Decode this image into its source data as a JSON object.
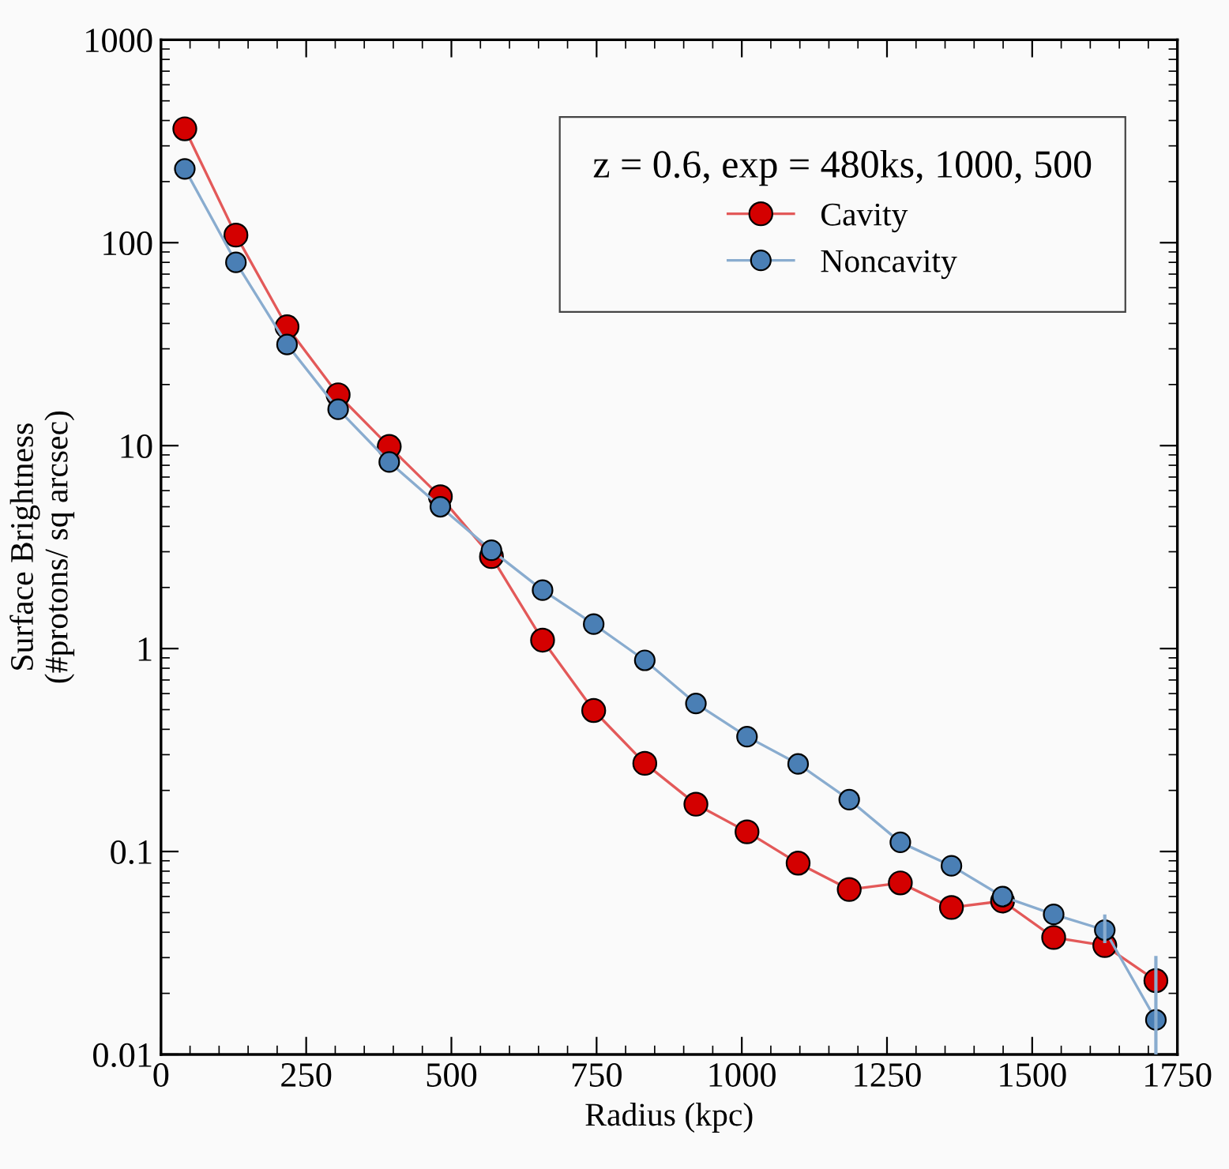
{
  "chart_data": {
    "type": "line",
    "xlabel": "Radius (kpc)",
    "ylabel": "Surface Brightness\n(#protons/ sq arcsec)",
    "legend_title": "z = 0.6, exp = 480ks, 1000, 500",
    "x": [
      41,
      129,
      217,
      305,
      393,
      481,
      569,
      657,
      745,
      833,
      921,
      1009,
      1097,
      1185,
      1273,
      1361,
      1449,
      1537,
      1625,
      1713
    ],
    "series": [
      {
        "name": "Cavity",
        "color": "#d40000",
        "values": [
          364,
          109,
          38.5,
          17.8,
          9.9,
          5.6,
          2.84,
          1.1,
          0.495,
          0.272,
          0.171,
          0.125,
          0.0876,
          0.065,
          0.07,
          0.053,
          0.057,
          0.0377,
          0.0344,
          0.0231
        ]
      },
      {
        "name": "Noncavity",
        "color": "#4a7fb5",
        "values": [
          231,
          80,
          31.5,
          15.1,
          8.3,
          5.0,
          3.05,
          1.94,
          1.32,
          0.875,
          0.536,
          0.368,
          0.27,
          0.18,
          0.111,
          0.085,
          0.06,
          0.049,
          0.041,
          0.0148
        ],
        "errors": [
          null,
          null,
          null,
          null,
          null,
          null,
          null,
          null,
          null,
          null,
          null,
          null,
          null,
          null,
          null,
          null,
          null,
          null,
          [
            0.036,
            0.048
          ],
          [
            0.01,
            0.03
          ]
        ]
      }
    ],
    "log": "y",
    "xlim": [
      0,
      1750
    ],
    "ylim": [
      0.01,
      1000
    ],
    "xticks": [
      0,
      250,
      500,
      750,
      1000,
      1250,
      1500,
      1750
    ],
    "yticks": [
      0.01,
      0.1,
      1,
      10,
      100,
      1000
    ],
    "marker": "circle",
    "line_style": "solid",
    "legend": "top right",
    "grid": false
  }
}
